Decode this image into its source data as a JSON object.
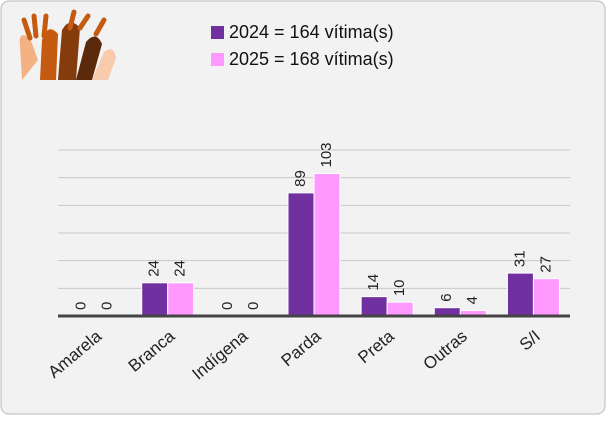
{
  "chart_data": {
    "type": "bar",
    "categories": [
      "Amarela",
      "Branca",
      "Indígena",
      "Parda",
      "Preta",
      "Outras",
      "S/I"
    ],
    "series": [
      {
        "name": "2024 = 164 vítima(s)",
        "color": "#7030a0",
        "values": [
          0,
          24,
          0,
          89,
          14,
          6,
          31
        ]
      },
      {
        "name": "2025 = 168 vítima(s)",
        "color": "#ff99ff",
        "values": [
          0,
          24,
          0,
          103,
          10,
          4,
          27
        ]
      }
    ],
    "ylim": [
      0,
      120
    ],
    "yticks": [
      0,
      20,
      40,
      60,
      80,
      100,
      120
    ],
    "grid": true
  }
}
